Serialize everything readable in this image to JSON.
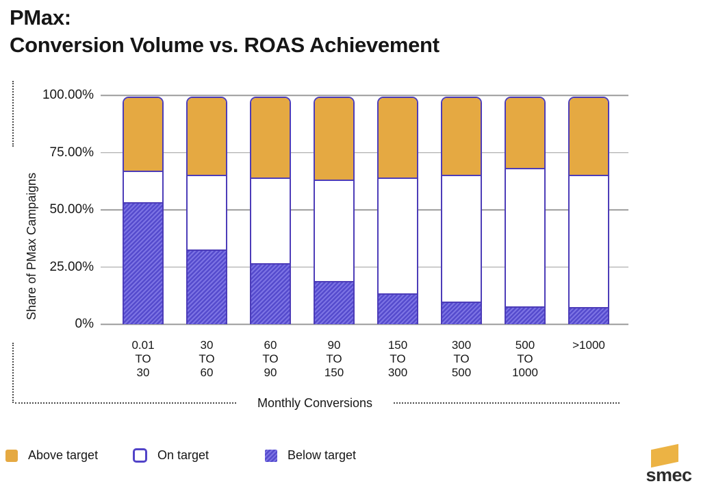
{
  "title": {
    "line1": "PMax:",
    "line2": "Conversion Volume vs. ROAS Achievement"
  },
  "axes": {
    "y_label": "Share of PMax Campaigns",
    "x_label": "Monthly Conversions",
    "y_ticks": [
      "100.00%",
      "75.00%",
      "50.00%",
      "25.00%",
      "0%"
    ]
  },
  "chart_data": {
    "type": "bar",
    "stacked": true,
    "title": "PMax: Conversion Volume vs. ROAS Achievement",
    "xlabel": "Monthly Conversions",
    "ylabel": "Share of PMax Campaigns",
    "ylim": [
      0,
      100
    ],
    "y_tick_format": "percent",
    "grid": true,
    "legend_position": "bottom",
    "categories": [
      "0.01 TO 30",
      "30 TO 60",
      "60 TO 90",
      "90 TO 150",
      "150 TO 300",
      "300 TO 500",
      "500 TO 1000",
      ">1000"
    ],
    "series": [
      {
        "name": "Below target",
        "values": [
          54,
          33,
          27,
          19,
          13.5,
          10,
          8,
          7.5
        ]
      },
      {
        "name": "On target",
        "values": [
          14,
          33,
          38,
          45,
          51.5,
          56,
          61,
          58.5
        ]
      },
      {
        "name": "Above target",
        "values": [
          32,
          34,
          35,
          36,
          35,
          34,
          31,
          34
        ]
      }
    ]
  },
  "legend": [
    {
      "label": "Above target",
      "style": "above"
    },
    {
      "label": "On target",
      "style": "on"
    },
    {
      "label": "Below target",
      "style": "below"
    }
  ],
  "logo": {
    "text": "smec"
  },
  "colors": {
    "above": "#E5A942",
    "on_fill": "#FFFFFF",
    "below_base": "#554BCD",
    "below_stripe": "#7D74E4",
    "outline": "#4C3CB8",
    "gridline": "#9B9B9B",
    "text": "#161616"
  }
}
